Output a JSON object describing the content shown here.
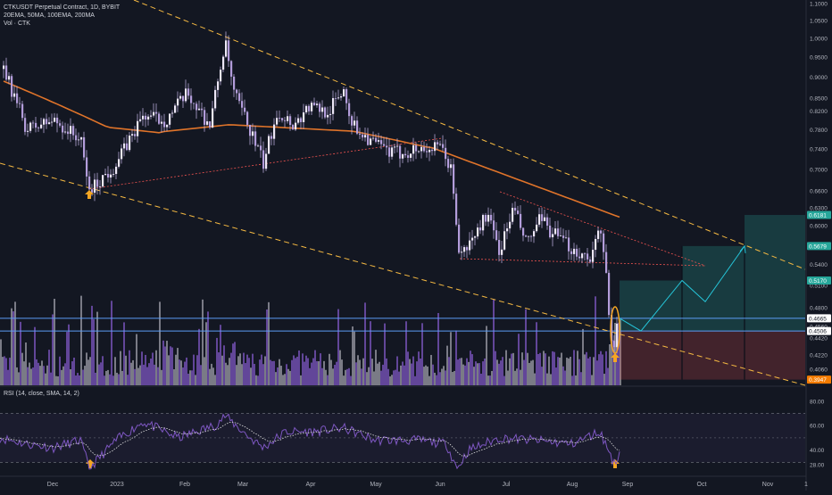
{
  "header": {
    "symbol_line": "CTKUSDT Perpetual Contract, 1D, BYBIT",
    "ma_line": "20EMA, 50MA, 100EMA, 200MA",
    "vol_line": "Vol · CTK"
  },
  "rsi_panel": {
    "label": "RSI (14, close, SMA, 14, 2)",
    "ticks": [
      {
        "v": 80,
        "label": "80.00"
      },
      {
        "v": 60,
        "label": "60.00"
      },
      {
        "v": 40,
        "label": "40.00"
      },
      {
        "v": 28,
        "label": "28.00"
      }
    ],
    "band_upper": 70,
    "band_lower": 30,
    "ylim": [
      20,
      85
    ]
  },
  "chart_data": {
    "type": "candlestick",
    "x_ticks": [
      "Dec",
      "2023",
      "Feb",
      "Mar",
      "Apr",
      "May",
      "Jun",
      "Jul",
      "Aug",
      "Sep",
      "Oct",
      "Nov",
      "1"
    ],
    "y_scale": "log",
    "ylim": [
      0.3947,
      1.1
    ],
    "y_ticks": [
      "1.1000",
      "1.0500",
      "1.0000",
      "0.9500",
      "0.9000",
      "0.8500",
      "0.8200",
      "0.7800",
      "0.7400",
      "0.7000",
      "0.6600",
      "0.6300",
      "0.6000",
      "0.5700",
      "0.5400",
      "0.5100",
      "0.4800",
      "0.4560",
      "0.4420",
      "0.4220",
      "0.4060",
      "0.3947"
    ],
    "price_labels": [
      {
        "value": 0.6181,
        "label": "0.6181",
        "color": "#26a69a"
      },
      {
        "value": 0.5679,
        "label": "0.5679",
        "color": "#26a69a"
      },
      {
        "value": 0.517,
        "label": "0.5170",
        "color": "#26a69a"
      },
      {
        "value": 0.4665,
        "label": "0.4665",
        "color": "#ffffff"
      },
      {
        "value": 0.4506,
        "label": "0.4506",
        "color": "#ffffff"
      },
      {
        "value": 0.3947,
        "label": "0.3947",
        "color": "#f57c00"
      }
    ],
    "horizontal_levels": [
      0.4665,
      0.4506
    ],
    "ma_200_color": "#e0742a",
    "candle_color": "#b39ddb"
  }
}
